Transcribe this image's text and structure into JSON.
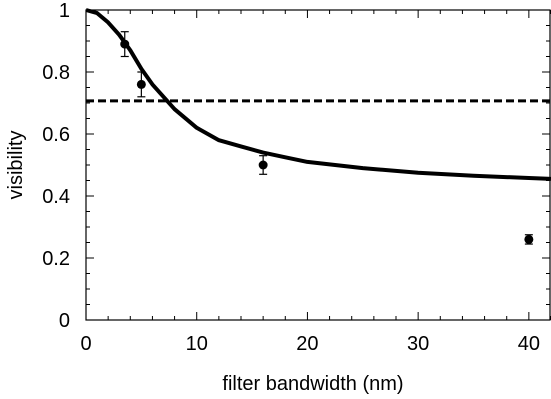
{
  "chart_data": {
    "type": "scatter",
    "title": "",
    "xlabel": "filter bandwidth (nm)",
    "ylabel": "visibility",
    "xlim": [
      0,
      42
    ],
    "ylim": [
      0,
      1
    ],
    "grid": false,
    "x_ticks": [
      0,
      10,
      20,
      30,
      40
    ],
    "x_tick_labels": [
      "0",
      "10",
      "20",
      "30",
      "40"
    ],
    "y_ticks": [
      0,
      0.2,
      0.4,
      0.6,
      0.8,
      1
    ],
    "y_tick_labels": [
      "0",
      "0.2",
      "0.4",
      "0.6",
      "0.8",
      "1"
    ],
    "series": [
      {
        "kind": "points-with-error-bars",
        "color": "#000000",
        "x": [
          3.5,
          5,
          16,
          40
        ],
        "y": [
          0.89,
          0.76,
          0.5,
          0.26
        ],
        "yerr": [
          0.04,
          0.04,
          0.03,
          0.015
        ]
      },
      {
        "kind": "curve",
        "color": "#000000",
        "line_style": "solid",
        "x": [
          0,
          1,
          2,
          3,
          4,
          5,
          6,
          7,
          8,
          10,
          12,
          14,
          16,
          18,
          20,
          25,
          30,
          35,
          40,
          42
        ],
        "y": [
          1.0,
          0.99,
          0.96,
          0.92,
          0.87,
          0.81,
          0.76,
          0.72,
          0.68,
          0.62,
          0.58,
          0.56,
          0.54,
          0.525,
          0.51,
          0.49,
          0.475,
          0.465,
          0.458,
          0.455
        ]
      },
      {
        "kind": "reference-line",
        "color": "#000000",
        "line_style": "dashed",
        "x": [
          0,
          42
        ],
        "y": [
          0.707,
          0.707
        ]
      }
    ]
  }
}
